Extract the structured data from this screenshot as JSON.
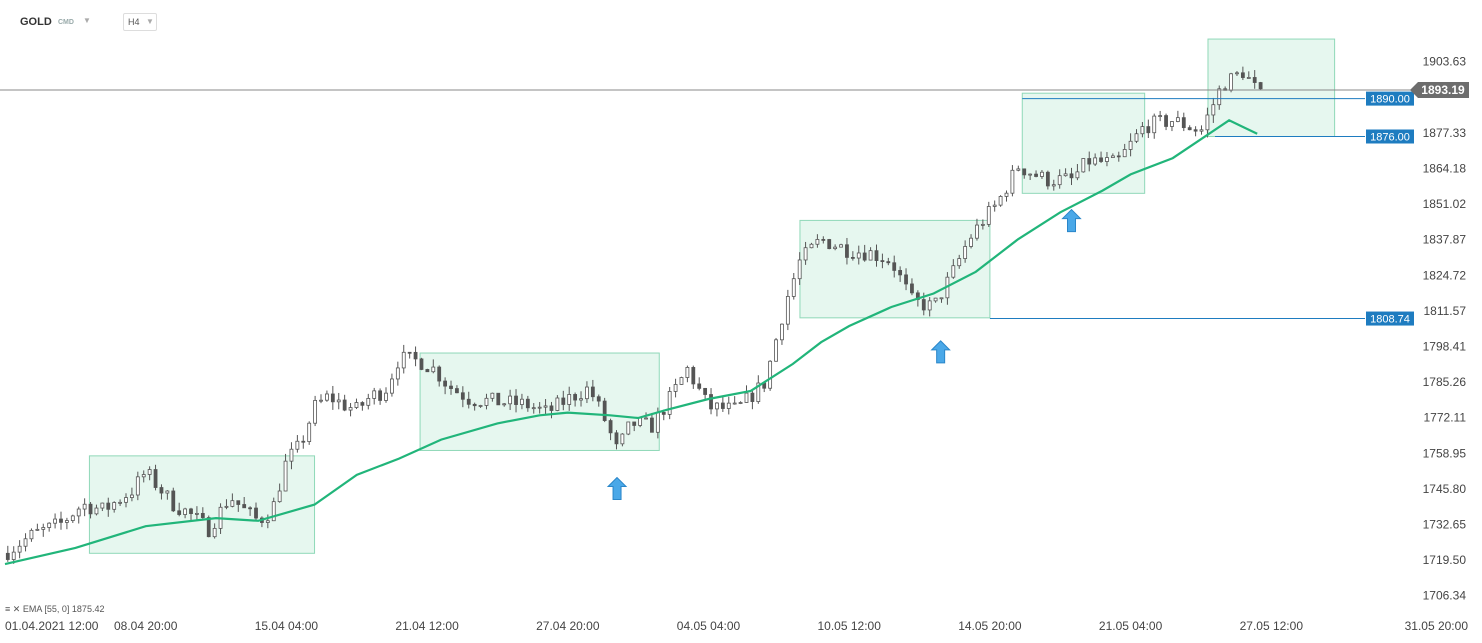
{
  "header": {
    "symbol": "GOLD",
    "source": "CMD",
    "timeframe": "H4"
  },
  "indicator": {
    "label": "EMA",
    "params": "[55, 0]",
    "value": "1875.42"
  },
  "colors": {
    "ema": "#21b57a",
    "zone_fill": "#e6f7ef",
    "zone_stroke": "#8fd8b8",
    "level_line": "#1e7cc0",
    "level_tag": "#1e7cc0",
    "price_tag": "#6d6d6d",
    "arrow": "#4aa8e8"
  },
  "chart_data": {
    "type": "candlestick",
    "title": "",
    "ylim": [
      1704.75,
      1913.5
    ],
    "xlim": [
      0,
      100
    ],
    "y_ticks": [
      "1903.63",
      "1877.33",
      "1864.18",
      "1851.02",
      "1837.87",
      "1824.72",
      "1811.57",
      "1798.41",
      "1785.26",
      "1772.11",
      "1758.95",
      "1745.80",
      "1732.65",
      "1719.50",
      "1706.34"
    ],
    "x_ticks": [
      {
        "label": "01.04.2021 12:00",
        "pos": 0
      },
      {
        "label": "08.04 20:00",
        "pos": 10
      },
      {
        "label": "15.04 04:00",
        "pos": 20
      },
      {
        "label": "21.04 12:00",
        "pos": 30
      },
      {
        "label": "27.04 20:00",
        "pos": 40
      },
      {
        "label": "04.05 04:00",
        "pos": 50
      },
      {
        "label": "10.05 12:00",
        "pos": 60
      },
      {
        "label": "14.05 20:00",
        "pos": 70
      },
      {
        "label": "21.05 04:00",
        "pos": 80
      },
      {
        "label": "27.05 12:00",
        "pos": 90
      },
      {
        "label": "31.05 20:00",
        "pos": 100
      }
    ],
    "current_price": "1893.19",
    "levels": [
      {
        "label": "1890.00",
        "value": 1890.0,
        "from": 72.3
      },
      {
        "label": "1876.00",
        "value": 1876.0,
        "from": 86.0
      },
      {
        "label": "1808.74",
        "value": 1808.74,
        "from": 70.0
      }
    ],
    "zones": [
      {
        "x0": 6.0,
        "x1": 22.0,
        "y0": 1722.0,
        "y1": 1758.0
      },
      {
        "x0": 29.5,
        "x1": 46.5,
        "y0": 1760.0,
        "y1": 1796.0
      },
      {
        "x0": 56.5,
        "x1": 70.0,
        "y0": 1809.0,
        "y1": 1845.0
      },
      {
        "x0": 72.3,
        "x1": 81.0,
        "y0": 1855.0,
        "y1": 1892.0
      },
      {
        "x0": 85.5,
        "x1": 94.5,
        "y0": 1876.0,
        "y1": 1912.0
      }
    ],
    "arrows": [
      {
        "x": 43.5,
        "y": 1750.0
      },
      {
        "x": 66.5,
        "y": 1800.5
      },
      {
        "x": 75.8,
        "y": 1849.0
      }
    ],
    "ema": {
      "name": "EMA",
      "x": [
        0,
        5,
        10,
        15,
        18,
        22,
        25,
        28,
        31,
        35,
        38,
        40,
        43,
        45,
        47,
        50,
        53,
        56,
        58,
        60,
        63,
        66,
        69,
        72,
        75,
        78,
        80,
        83,
        85,
        87,
        89
      ],
      "y": [
        1718,
        1724,
        1732,
        1735,
        1734,
        1740,
        1751,
        1757,
        1764,
        1770,
        1773,
        1774,
        1773,
        1772,
        1775,
        1779,
        1782,
        1792,
        1800,
        1806,
        1813,
        1818,
        1826,
        1838,
        1848,
        1856,
        1862,
        1868,
        1875,
        1882,
        1877
      ]
    },
    "ohlc_path": {
      "x": [
        0,
        2,
        4,
        5.5,
        7,
        9,
        10,
        11,
        12,
        13,
        14.5,
        16,
        17,
        18,
        19,
        20,
        21,
        22,
        23,
        24,
        25,
        26,
        27,
        28,
        29.5,
        30.5,
        31.5,
        33,
        35,
        37,
        38.5,
        40,
        41.5,
        42.5,
        43.5,
        44.5,
        46,
        47,
        48.5,
        50,
        52,
        54,
        55.5,
        56.5,
        58,
        60,
        61.5,
        63,
        64.5,
        66,
        67.5,
        68.5,
        69.5,
        70.5,
        72,
        74,
        75.8,
        77,
        79,
        81,
        83,
        85,
        86.5,
        88,
        89.5
      ],
      "y": [
        1722,
        1729,
        1733,
        1740,
        1738,
        1745,
        1752,
        1746,
        1740,
        1737,
        1731,
        1743,
        1738,
        1734,
        1738,
        1756,
        1762,
        1776,
        1780,
        1777,
        1775,
        1780,
        1782,
        1794,
        1793,
        1790,
        1784,
        1779,
        1778,
        1777,
        1774,
        1779,
        1783,
        1773,
        1760,
        1770,
        1769,
        1777,
        1790,
        1776,
        1775,
        1785,
        1815,
        1830,
        1838,
        1834,
        1833,
        1830,
        1815,
        1813,
        1827,
        1838,
        1845,
        1851,
        1865,
        1860,
        1860,
        1867,
        1866,
        1880,
        1882,
        1878,
        1895,
        1900,
        1889
      ]
    }
  }
}
